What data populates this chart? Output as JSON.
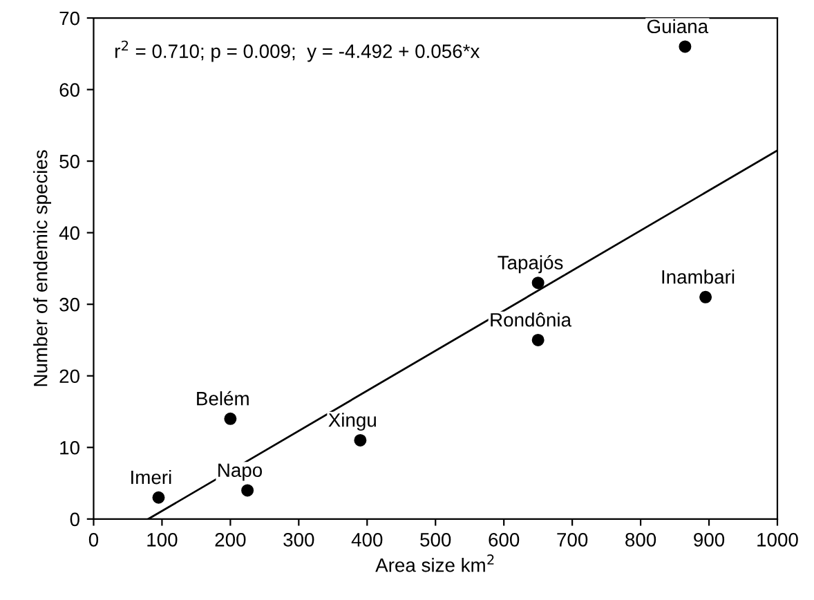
{
  "chart_data": {
    "type": "scatter",
    "xlabel": "Area size km$^{2}$",
    "ylabel": "Number of endemic species",
    "x": [
      95,
      200,
      225,
      390,
      650,
      650,
      895,
      865
    ],
    "series": [
      {
        "type": "scatter",
        "color": "#000000",
        "marker": "circle",
        "values": [
          3,
          14,
          4,
          11,
          33,
          25,
          31,
          66
        ]
      },
      {
        "type": "line",
        "color": "#000000",
        "marker": "none",
        "line_style": "solid",
        "x": [
          80,
          1000
        ],
        "values": [
          0,
          51.5
        ]
      }
    ],
    "annotations": [
      {
        "text": "r$^{2}$ = 0.710; p = 0.009;  y = -4.492 + 0.056*x"
      },
      {
        "text": "Imeri",
        "x": 95,
        "y": 3
      },
      {
        "text": "Belém",
        "x": 200,
        "y": 14
      },
      {
        "text": "Napo",
        "x": 225,
        "y": 4
      },
      {
        "text": "Xingu",
        "x": 390,
        "y": 11
      },
      {
        "text": "Tapajós",
        "x": 650,
        "y": 33
      },
      {
        "text": "Rondônia",
        "x": 650,
        "y": 25
      },
      {
        "text": "Inambari",
        "x": 895,
        "y": 31
      },
      {
        "text": "Guiana",
        "x": 865,
        "y": 66
      }
    ],
    "xlim": [
      0,
      1000
    ],
    "ylim": [
      0,
      70
    ],
    "xticks": [
      0,
      100,
      200,
      300,
      400,
      500,
      600,
      700,
      800,
      900,
      1000
    ],
    "yticks": [
      0,
      10,
      20,
      30,
      40,
      50,
      60,
      70
    ],
    "grid": false,
    "legend": false
  }
}
